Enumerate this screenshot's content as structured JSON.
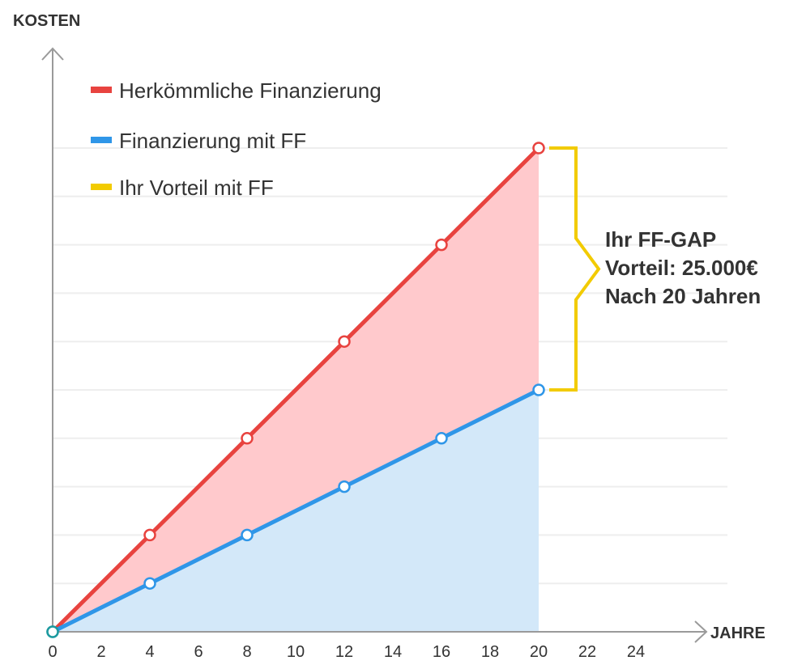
{
  "chart_data": {
    "type": "line",
    "ylabel": "KOSTEN",
    "xlabel": "JAHRE",
    "x_ticks": [
      0,
      2,
      4,
      6,
      8,
      10,
      12,
      14,
      16,
      18,
      20,
      22,
      24
    ],
    "xlim": [
      0,
      26
    ],
    "ylim": [
      0,
      10
    ],
    "grid": true,
    "legend_position": "top-left",
    "series": [
      {
        "name": "Herkömmliche Finanzierung",
        "color": "#e8433f",
        "fill_color": "#ffc9cc",
        "points": [
          [
            0,
            0
          ],
          [
            4,
            2
          ],
          [
            8,
            4
          ],
          [
            12,
            6
          ],
          [
            16,
            8
          ],
          [
            20,
            10
          ]
        ]
      },
      {
        "name": "Finanzierung mit FF",
        "color": "#2f96e8",
        "fill_color": "#d3e8f9",
        "points": [
          [
            0,
            0
          ],
          [
            4,
            1
          ],
          [
            8,
            2
          ],
          [
            12,
            3
          ],
          [
            16,
            4
          ],
          [
            20,
            5
          ]
        ]
      }
    ],
    "gap_legend": {
      "name": "Ihr Vorteil mit FF",
      "color": "#f2cb00"
    },
    "annotation": {
      "lines": [
        "Ihr FF-GAP",
        "Vorteil: 25.000€",
        "Nach 20 Jahren"
      ],
      "x": 20,
      "y_from": 5,
      "y_to": 10
    }
  }
}
